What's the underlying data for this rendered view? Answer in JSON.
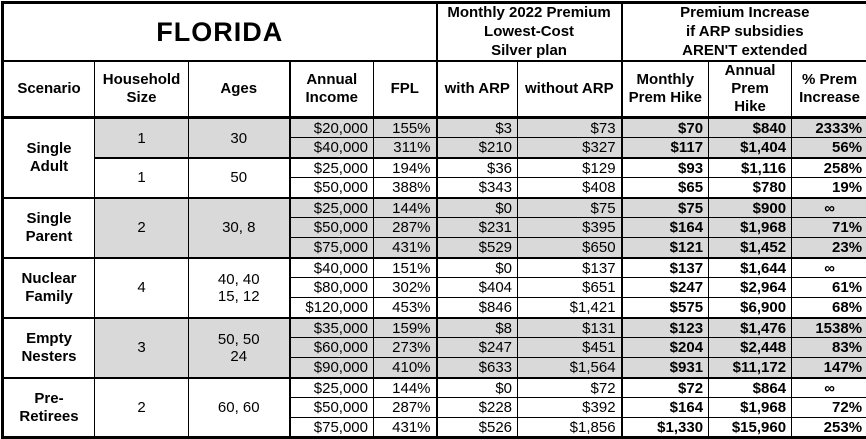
{
  "title": "FLORIDA",
  "column_groups": {
    "monthly_premium": "Monthly 2022 Premium\nLowest-Cost\nSilver plan",
    "premium_increase": "Premium Increase\nif ARP subsidies\nAREN'T extended"
  },
  "columns": [
    "Scenario",
    "Household\nSize",
    "Ages",
    "Annual\nIncome",
    "FPL",
    "with ARP",
    "without ARP",
    "Monthly\nPrem Hike",
    "Annual\nPrem Hike",
    "% Prem\nIncrease"
  ],
  "colors": {
    "shaded_row": "#d9d9d9",
    "border": "#000000",
    "background": "#ffffff"
  },
  "groups": [
    {
      "label": "Single\nAdult",
      "subgroups": [
        {
          "household_size": "1",
          "ages": "30",
          "shaded": true,
          "rows": [
            [
              "$20,000",
              "155%",
              "$3",
              "$73",
              "$70",
              "$840",
              "2333%"
            ],
            [
              "$40,000",
              "311%",
              "$210",
              "$327",
              "$117",
              "$1,404",
              "56%"
            ]
          ]
        },
        {
          "household_size": "1",
          "ages": "50",
          "shaded": false,
          "rows": [
            [
              "$25,000",
              "194%",
              "$36",
              "$129",
              "$93",
              "$1,116",
              "258%"
            ],
            [
              "$50,000",
              "388%",
              "$343",
              "$408",
              "$65",
              "$780",
              "19%"
            ]
          ]
        }
      ]
    },
    {
      "label": "Single\nParent",
      "subgroups": [
        {
          "household_size": "2",
          "ages": "30, 8",
          "shaded": true,
          "rows": [
            [
              "$25,000",
              "144%",
              "$0",
              "$75",
              "$75",
              "$900",
              "∞"
            ],
            [
              "$50,000",
              "287%",
              "$231",
              "$395",
              "$164",
              "$1,968",
              "71%"
            ],
            [
              "$75,000",
              "431%",
              "$529",
              "$650",
              "$121",
              "$1,452",
              "23%"
            ]
          ]
        }
      ]
    },
    {
      "label": "Nuclear\nFamily",
      "subgroups": [
        {
          "household_size": "4",
          "ages": "40, 40\n15, 12",
          "shaded": false,
          "rows": [
            [
              "$40,000",
              "151%",
              "$0",
              "$137",
              "$137",
              "$1,644",
              "∞"
            ],
            [
              "$80,000",
              "302%",
              "$404",
              "$651",
              "$247",
              "$2,964",
              "61%"
            ],
            [
              "$120,000",
              "453%",
              "$846",
              "$1,421",
              "$575",
              "$6,900",
              "68%"
            ]
          ]
        }
      ]
    },
    {
      "label": "Empty\nNesters",
      "subgroups": [
        {
          "household_size": "3",
          "ages": "50, 50\n24",
          "shaded": true,
          "rows": [
            [
              "$35,000",
              "159%",
              "$8",
              "$131",
              "$123",
              "$1,476",
              "1538%"
            ],
            [
              "$60,000",
              "273%",
              "$247",
              "$451",
              "$204",
              "$2,448",
              "83%"
            ],
            [
              "$90,000",
              "410%",
              "$633",
              "$1,564",
              "$931",
              "$11,172",
              "147%"
            ]
          ]
        }
      ]
    },
    {
      "label": "Pre-\nRetirees",
      "subgroups": [
        {
          "household_size": "2",
          "ages": "60, 60",
          "shaded": false,
          "rows": [
            [
              "$25,000",
              "144%",
              "$0",
              "$72",
              "$72",
              "$864",
              "∞"
            ],
            [
              "$50,000",
              "287%",
              "$228",
              "$392",
              "$164",
              "$1,968",
              "72%"
            ],
            [
              "$75,000",
              "431%",
              "$526",
              "$1,856",
              "$1,330",
              "$15,960",
              "253%"
            ]
          ]
        }
      ]
    }
  ],
  "chart_data": {
    "type": "table",
    "title": "FLORIDA",
    "column_group_headers": [
      "Monthly 2022 Premium Lowest-Cost Silver plan (spans: with ARP, without ARP)",
      "Premium Increase if ARP subsidies AREN'T extended (spans: Monthly Prem Hike, Annual Prem Hike, % Prem Increase)"
    ],
    "column_headers": [
      "Scenario",
      "Household Size",
      "Ages",
      "Annual Income",
      "FPL",
      "with ARP",
      "without ARP",
      "Monthly Prem Hike",
      "Annual Prem Hike",
      "% Prem Increase"
    ],
    "rows": [
      [
        "Single Adult",
        "1",
        "30",
        "$20,000",
        "155%",
        "$3",
        "$73",
        "$70",
        "$840",
        "2333%"
      ],
      [
        "Single Adult",
        "1",
        "30",
        "$40,000",
        "311%",
        "$210",
        "$327",
        "$117",
        "$1,404",
        "56%"
      ],
      [
        "Single Adult",
        "1",
        "50",
        "$25,000",
        "194%",
        "$36",
        "$129",
        "$93",
        "$1,116",
        "258%"
      ],
      [
        "Single Adult",
        "1",
        "50",
        "$50,000",
        "388%",
        "$343",
        "$408",
        "$65",
        "$780",
        "19%"
      ],
      [
        "Single Parent",
        "2",
        "30, 8",
        "$25,000",
        "144%",
        "$0",
        "$75",
        "$75",
        "$900",
        "∞"
      ],
      [
        "Single Parent",
        "2",
        "30, 8",
        "$50,000",
        "287%",
        "$231",
        "$395",
        "$164",
        "$1,968",
        "71%"
      ],
      [
        "Single Parent",
        "2",
        "30, 8",
        "$75,000",
        "431%",
        "$529",
        "$650",
        "$121",
        "$1,452",
        "23%"
      ],
      [
        "Nuclear Family",
        "4",
        "40, 40, 15, 12",
        "$40,000",
        "151%",
        "$0",
        "$137",
        "$137",
        "$1,644",
        "∞"
      ],
      [
        "Nuclear Family",
        "4",
        "40, 40, 15, 12",
        "$80,000",
        "302%",
        "$404",
        "$651",
        "$247",
        "$2,964",
        "61%"
      ],
      [
        "Nuclear Family",
        "4",
        "40, 40, 15, 12",
        "$120,000",
        "453%",
        "$846",
        "$1,421",
        "$575",
        "$6,900",
        "68%"
      ],
      [
        "Empty Nesters",
        "3",
        "50, 50, 24",
        "$35,000",
        "159%",
        "$8",
        "$131",
        "$123",
        "$1,476",
        "1538%"
      ],
      [
        "Empty Nesters",
        "3",
        "50, 50, 24",
        "$60,000",
        "273%",
        "$247",
        "$451",
        "$204",
        "$2,448",
        "83%"
      ],
      [
        "Empty Nesters",
        "3",
        "50, 50, 24",
        "$90,000",
        "410%",
        "$633",
        "$1,564",
        "$931",
        "$11,172",
        "147%"
      ],
      [
        "Pre-Retirees",
        "2",
        "60, 60",
        "$25,000",
        "144%",
        "$0",
        "$72",
        "$72",
        "$864",
        "∞"
      ],
      [
        "Pre-Retirees",
        "2",
        "60, 60",
        "$50,000",
        "287%",
        "$228",
        "$392",
        "$164",
        "$1,968",
        "72%"
      ],
      [
        "Pre-Retirees",
        "2",
        "60, 60",
        "$75,000",
        "431%",
        "$526",
        "$1,856",
        "$1,330",
        "$15,960",
        "253%"
      ]
    ]
  }
}
